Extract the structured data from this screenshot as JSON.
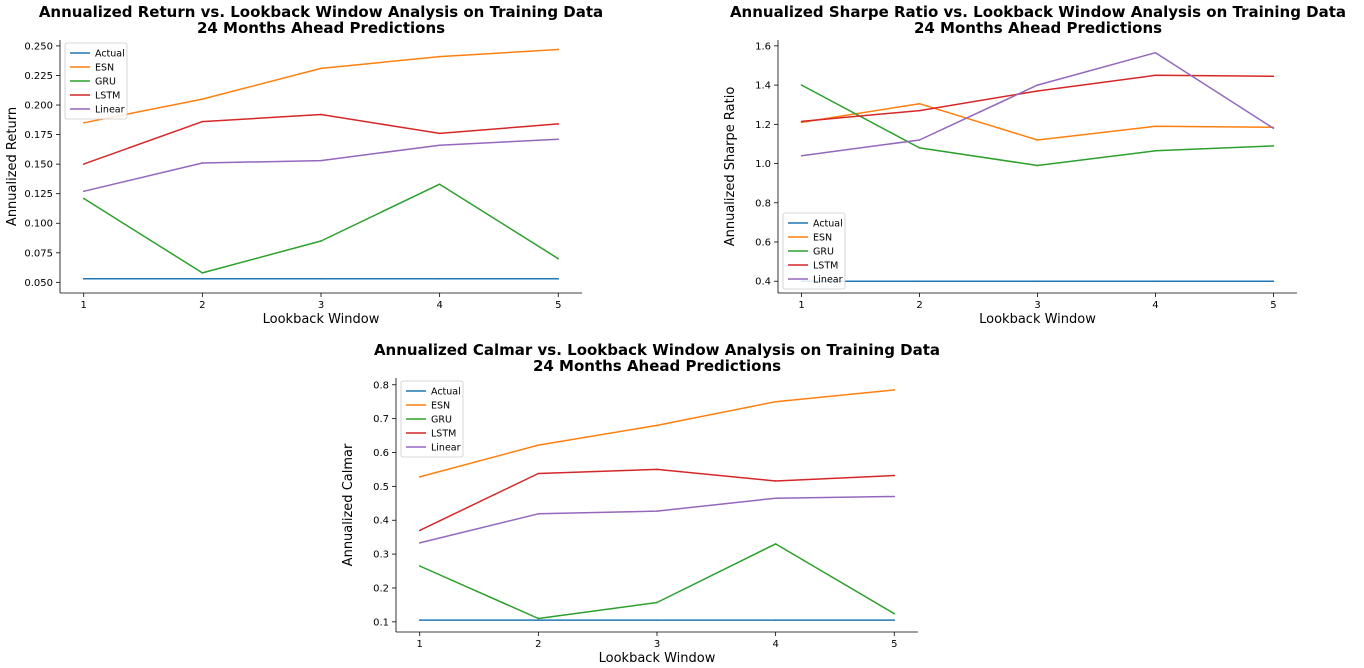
{
  "colors": {
    "Actual": "#1f77b4",
    "ESN": "#ff7f0e",
    "GRU": "#2ca02c",
    "LSTM": "#d62728",
    "Linear": "#9467bd"
  },
  "chart_data": [
    {
      "type": "line",
      "title": "Annualized Return vs. Lookback Window Analysis on Training Data",
      "subtitle": "24 Months Ahead Predictions",
      "xlabel": "Lookback Window",
      "ylabel": "Annualized Return",
      "x": [
        1,
        2,
        3,
        4,
        5
      ],
      "x_ticks": [
        1,
        2,
        3,
        4,
        5
      ],
      "y_ticks": [
        0.05,
        0.075,
        0.1,
        0.125,
        0.15,
        0.175,
        0.2,
        0.225,
        0.25
      ],
      "y_tick_labels": [
        "0.050",
        "0.075",
        "0.100",
        "0.125",
        "0.150",
        "0.175",
        "0.200",
        "0.225",
        "0.250"
      ],
      "ylim": [
        0.041,
        0.255
      ],
      "xlim": [
        0.8,
        5.2
      ],
      "grid": false,
      "legend_position": "upper-left",
      "series": [
        {
          "name": "Actual",
          "values": [
            0.053,
            0.053,
            0.053,
            0.053,
            0.053
          ]
        },
        {
          "name": "ESN",
          "values": [
            0.185,
            0.205,
            0.231,
            0.241,
            0.247
          ]
        },
        {
          "name": "GRU",
          "values": [
            0.121,
            0.058,
            0.085,
            0.133,
            0.07
          ]
        },
        {
          "name": "LSTM",
          "values": [
            0.15,
            0.186,
            0.192,
            0.176,
            0.184
          ]
        },
        {
          "name": "Linear",
          "values": [
            0.127,
            0.151,
            0.153,
            0.166,
            0.171
          ]
        }
      ]
    },
    {
      "type": "line",
      "title": "Annualized Sharpe Ratio vs. Lookback Window Analysis on Training Data",
      "subtitle": "24 Months Ahead Predictions",
      "xlabel": "Lookback Window",
      "ylabel": "Annualized Sharpe Ratio",
      "x": [
        1,
        2,
        3,
        4,
        5
      ],
      "x_ticks": [
        1,
        2,
        3,
        4,
        5
      ],
      "y_ticks": [
        0.4,
        0.6,
        0.8,
        1.0,
        1.2,
        1.4,
        1.6
      ],
      "y_tick_labels": [
        "0.4",
        "0.6",
        "0.8",
        "1.0",
        "1.2",
        "1.4",
        "1.6"
      ],
      "ylim": [
        0.34,
        1.63
      ],
      "xlim": [
        0.8,
        5.2
      ],
      "grid": false,
      "legend_position": "lower-left",
      "series": [
        {
          "name": "Actual",
          "values": [
            0.4,
            0.4,
            0.4,
            0.4,
            0.4
          ]
        },
        {
          "name": "ESN",
          "values": [
            1.21,
            1.305,
            1.12,
            1.19,
            1.185
          ]
        },
        {
          "name": "GRU",
          "values": [
            1.4,
            1.08,
            0.99,
            1.065,
            1.09
          ]
        },
        {
          "name": "LSTM",
          "values": [
            1.215,
            1.27,
            1.37,
            1.45,
            1.445
          ]
        },
        {
          "name": "Linear",
          "values": [
            1.04,
            1.12,
            1.4,
            1.565,
            1.18
          ]
        }
      ]
    },
    {
      "type": "line",
      "title": "Annualized Calmar vs. Lookback Window Analysis on Training Data",
      "subtitle": "24 Months Ahead Predictions",
      "xlabel": "Lookback Window",
      "ylabel": "Annualized Calmar",
      "x": [
        1,
        2,
        3,
        4,
        5
      ],
      "x_ticks": [
        1,
        2,
        3,
        4,
        5
      ],
      "y_ticks": [
        0.1,
        0.2,
        0.3,
        0.4,
        0.5,
        0.6,
        0.7,
        0.8
      ],
      "y_tick_labels": [
        "0.1",
        "0.2",
        "0.3",
        "0.4",
        "0.5",
        "0.6",
        "0.7",
        "0.8"
      ],
      "ylim": [
        0.07,
        0.82
      ],
      "xlim": [
        0.8,
        5.2
      ],
      "grid": false,
      "legend_position": "upper-left",
      "series": [
        {
          "name": "Actual",
          "values": [
            0.105,
            0.105,
            0.105,
            0.105,
            0.105
          ]
        },
        {
          "name": "ESN",
          "values": [
            0.528,
            0.622,
            0.68,
            0.75,
            0.785
          ]
        },
        {
          "name": "GRU",
          "values": [
            0.265,
            0.11,
            0.157,
            0.33,
            0.124
          ]
        },
        {
          "name": "LSTM",
          "values": [
            0.37,
            0.538,
            0.55,
            0.516,
            0.532
          ]
        },
        {
          "name": "Linear",
          "values": [
            0.333,
            0.419,
            0.427,
            0.465,
            0.47
          ]
        }
      ]
    }
  ]
}
